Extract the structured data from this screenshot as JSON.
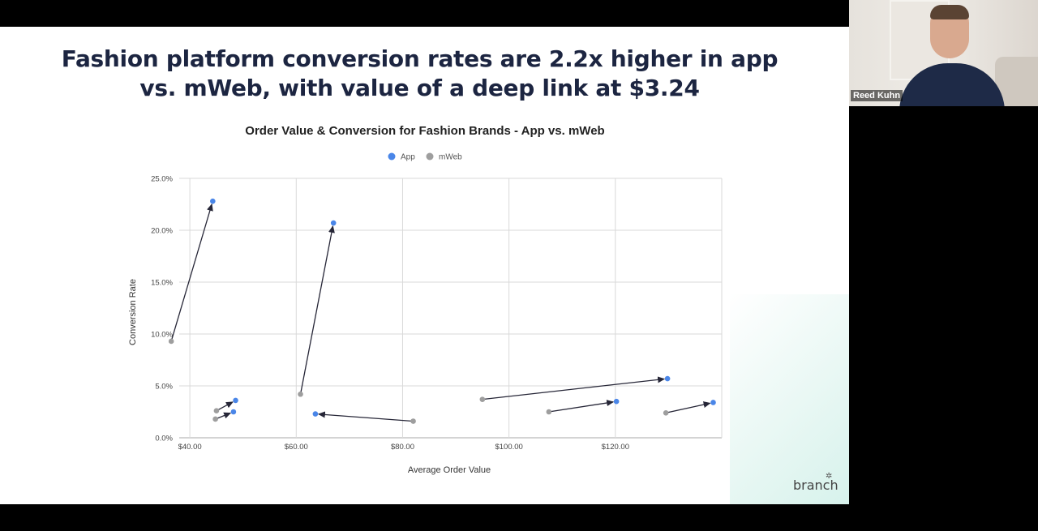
{
  "slide": {
    "headline_line1": "Fashion platform conversion rates are 2.2x higher in app",
    "headline_line2": "vs. mWeb, with value of a deep link at $3.24",
    "logo": "branch"
  },
  "webcam": {
    "name": "Reed Kuhn"
  },
  "colors": {
    "app": "#4a86e8",
    "mweb": "#9e9e9e",
    "arrow": "#262637",
    "grid": "#d9d9d9",
    "title": "#1c2541"
  },
  "chart_data": {
    "type": "scatter",
    "title": "Order Value & Conversion for Fashion Brands - App vs. mWeb",
    "xlabel": "Average Order Value",
    "ylabel": "Conversion Rate",
    "xlim": [
      38,
      140
    ],
    "ylim": [
      0,
      25
    ],
    "x_ticks": [
      40,
      60,
      80,
      100,
      120
    ],
    "x_tick_labels": [
      "$40.00",
      "$60.00",
      "$80.00",
      "$100.00",
      "$120.00"
    ],
    "y_ticks": [
      0,
      5,
      10,
      15,
      20,
      25
    ],
    "y_tick_labels": [
      "0.0%",
      "5.0%",
      "10.0%",
      "15.0%",
      "20.0%",
      "25.0%"
    ],
    "grid": true,
    "legend": "top-center",
    "series": [
      {
        "name": "App",
        "x": [
          44.3,
          48.6,
          48.2,
          67.0,
          63.6,
          129.8,
          120.2,
          138.4
        ],
        "y": [
          22.8,
          3.6,
          2.5,
          20.7,
          2.3,
          5.7,
          3.5,
          3.4
        ]
      },
      {
        "name": "mWeb",
        "x": [
          36.5,
          45.0,
          44.8,
          60.8,
          82.0,
          95.0,
          107.5,
          129.5
        ],
        "y": [
          9.3,
          2.6,
          1.8,
          4.2,
          1.6,
          3.7,
          2.5,
          2.4
        ]
      }
    ],
    "arrows": [
      {
        "from": [
          36.5,
          9.3
        ],
        "to": [
          44.3,
          22.8
        ]
      },
      {
        "from": [
          45.0,
          2.6
        ],
        "to": [
          48.6,
          3.6
        ]
      },
      {
        "from": [
          44.8,
          1.8
        ],
        "to": [
          48.2,
          2.5
        ]
      },
      {
        "from": [
          60.8,
          4.2
        ],
        "to": [
          67.0,
          20.7
        ]
      },
      {
        "from": [
          82.0,
          1.6
        ],
        "to": [
          63.6,
          2.3
        ]
      },
      {
        "from": [
          95.0,
          3.7
        ],
        "to": [
          129.8,
          5.7
        ]
      },
      {
        "from": [
          107.5,
          2.5
        ],
        "to": [
          120.2,
          3.5
        ]
      },
      {
        "from": [
          129.5,
          2.4
        ],
        "to": [
          138.4,
          3.4
        ]
      }
    ]
  }
}
